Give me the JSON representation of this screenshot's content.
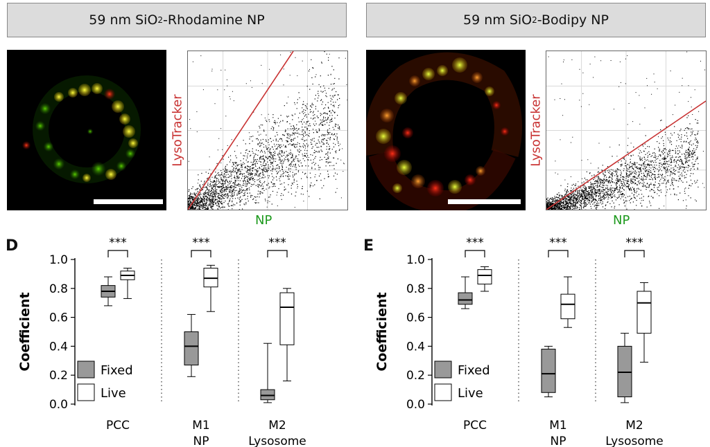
{
  "headers": {
    "left": {
      "prefix": "59 nm SiO",
      "sub": "2",
      "suffix": "-Rhodamine NP"
    },
    "right": {
      "prefix": "59 nm SiO",
      "sub": "2",
      "suffix": "-Bodipy NP"
    }
  },
  "scatter_labels": {
    "ylabel": "LysoTracker",
    "xlabel": "NP"
  },
  "colors": {
    "lysotracker": "#c83232",
    "np": "#1e9a1e",
    "fixed_fill": "#999999",
    "live_fill": "#ffffff"
  },
  "chart_data": [
    {
      "type": "box",
      "panel": "D",
      "ylabel": "Coefficient",
      "ylim": [
        0.0,
        1.0
      ],
      "yticks": [
        "0.0",
        "0.2",
        "0.4",
        "0.6",
        "0.8",
        "1.0"
      ],
      "groups": [
        {
          "label_lines": [
            "PCC"
          ],
          "significance": "***",
          "fixed": {
            "min": 0.68,
            "q1": 0.74,
            "median": 0.78,
            "q3": 0.82,
            "max": 0.88
          },
          "live": {
            "min": 0.73,
            "q1": 0.86,
            "median": 0.89,
            "q3": 0.92,
            "max": 0.94
          }
        },
        {
          "label_lines": [
            "M1",
            "NP"
          ],
          "significance": "***",
          "fixed": {
            "min": 0.19,
            "q1": 0.27,
            "median": 0.4,
            "q3": 0.5,
            "max": 0.62
          },
          "live": {
            "min": 0.64,
            "q1": 0.81,
            "median": 0.87,
            "q3": 0.94,
            "max": 0.96
          }
        },
        {
          "label_lines": [
            "M2",
            "Lysosome"
          ],
          "significance": "***",
          "fixed": {
            "min": 0.01,
            "q1": 0.03,
            "median": 0.06,
            "q3": 0.1,
            "max": 0.42
          },
          "live": {
            "min": 0.16,
            "q1": 0.41,
            "median": 0.67,
            "q3": 0.77,
            "max": 0.8
          }
        }
      ],
      "legend": [
        "Fixed",
        "Live"
      ]
    },
    {
      "type": "box",
      "panel": "E",
      "ylabel": "Coefficient",
      "ylim": [
        0.0,
        1.0
      ],
      "yticks": [
        "0.0",
        "0.2",
        "0.4",
        "0.6",
        "0.8",
        "1.0"
      ],
      "groups": [
        {
          "label_lines": [
            "PCC"
          ],
          "significance": "***",
          "fixed": {
            "min": 0.66,
            "q1": 0.69,
            "median": 0.72,
            "q3": 0.77,
            "max": 0.88
          },
          "live": {
            "min": 0.78,
            "q1": 0.83,
            "median": 0.89,
            "q3": 0.93,
            "max": 0.95
          }
        },
        {
          "label_lines": [
            "M1",
            "NP"
          ],
          "significance": "***",
          "fixed": {
            "min": 0.05,
            "q1": 0.08,
            "median": 0.21,
            "q3": 0.38,
            "max": 0.4
          },
          "live": {
            "min": 0.53,
            "q1": 0.59,
            "median": 0.69,
            "q3": 0.76,
            "max": 0.88
          }
        },
        {
          "label_lines": [
            "M2",
            "Lysosome"
          ],
          "significance": "***",
          "fixed": {
            "min": 0.01,
            "q1": 0.05,
            "median": 0.22,
            "q3": 0.4,
            "max": 0.49
          },
          "live": {
            "min": 0.29,
            "q1": 0.49,
            "median": 0.7,
            "q3": 0.78,
            "max": 0.84
          }
        }
      ],
      "legend": [
        "Fixed",
        "Live"
      ]
    }
  ]
}
